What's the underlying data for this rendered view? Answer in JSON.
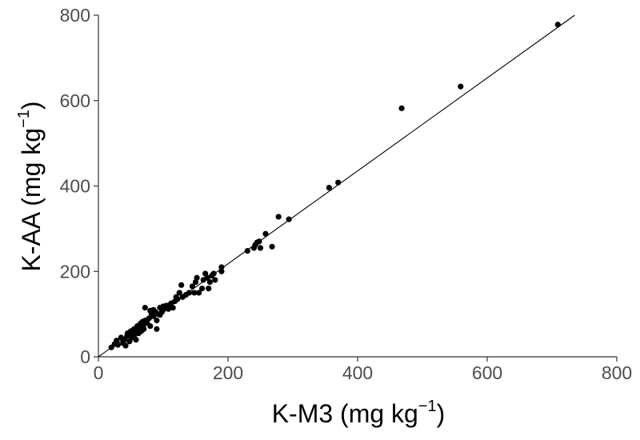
{
  "chart_data": {
    "type": "scatter",
    "xlabel": {
      "main": "K-M3 (mg kg",
      "sup": "−1",
      "close": ")"
    },
    "ylabel": {
      "main": "K-AA (mg kg",
      "sup": "−1",
      "close": ")"
    },
    "xlim": [
      0,
      800
    ],
    "ylim": [
      0,
      800
    ],
    "xticks": [
      0,
      200,
      400,
      600,
      800
    ],
    "yticks": [
      0,
      200,
      400,
      600,
      800
    ],
    "grid": false,
    "point_color": "#000000",
    "fit_line": {
      "x": [
        0,
        735
      ],
      "y": [
        0,
        800
      ]
    },
    "series": [
      {
        "points": [
          [
            20,
            22
          ],
          [
            25,
            30
          ],
          [
            28,
            38
          ],
          [
            30,
            28
          ],
          [
            35,
            45
          ],
          [
            38,
            32
          ],
          [
            40,
            40
          ],
          [
            42,
            26
          ],
          [
            44,
            48
          ],
          [
            45,
            55
          ],
          [
            48,
            36
          ],
          [
            50,
            60
          ],
          [
            50,
            52
          ],
          [
            52,
            45
          ],
          [
            55,
            65
          ],
          [
            55,
            50
          ],
          [
            58,
            58
          ],
          [
            58,
            40
          ],
          [
            60,
            72
          ],
          [
            60,
            62
          ],
          [
            62,
            55
          ],
          [
            65,
            78
          ],
          [
            65,
            68
          ],
          [
            66,
            60
          ],
          [
            68,
            82
          ],
          [
            70,
            75
          ],
          [
            70,
            65
          ],
          [
            72,
            85
          ],
          [
            72,
            115
          ],
          [
            75,
            80
          ],
          [
            78,
            90
          ],
          [
            80,
            108
          ],
          [
            80,
            72
          ],
          [
            82,
            100
          ],
          [
            85,
            95
          ],
          [
            85,
            110
          ],
          [
            88,
            105
          ],
          [
            90,
            65
          ],
          [
            90,
            85
          ],
          [
            92,
            100
          ],
          [
            95,
            115
          ],
          [
            95,
            98
          ],
          [
            98,
            105
          ],
          [
            100,
            118
          ],
          [
            100,
            110
          ],
          [
            105,
            120
          ],
          [
            108,
            112
          ],
          [
            110,
            118
          ],
          [
            112,
            125
          ],
          [
            115,
            115
          ],
          [
            118,
            130
          ],
          [
            120,
            140
          ],
          [
            122,
            135
          ],
          [
            125,
            150
          ],
          [
            128,
            168
          ],
          [
            130,
            140
          ],
          [
            135,
            145
          ],
          [
            140,
            150
          ],
          [
            145,
            165
          ],
          [
            148,
            150
          ],
          [
            150,
            175
          ],
          [
            152,
            185
          ],
          [
            155,
            150
          ],
          [
            160,
            160
          ],
          [
            162,
            180
          ],
          [
            165,
            195
          ],
          [
            168,
            185
          ],
          [
            170,
            160
          ],
          [
            172,
            175
          ],
          [
            175,
            190
          ],
          [
            178,
            195
          ],
          [
            180,
            180
          ],
          [
            190,
            200
          ],
          [
            190,
            210
          ],
          [
            230,
            248
          ],
          [
            240,
            255
          ],
          [
            242,
            262
          ],
          [
            245,
            268
          ],
          [
            248,
            270
          ],
          [
            250,
            255
          ],
          [
            258,
            288
          ],
          [
            268,
            258
          ],
          [
            278,
            328
          ],
          [
            294,
            322
          ],
          [
            356,
            396
          ],
          [
            370,
            408
          ],
          [
            468,
            582
          ],
          [
            559,
            633
          ],
          [
            709,
            778
          ]
        ]
      }
    ]
  }
}
